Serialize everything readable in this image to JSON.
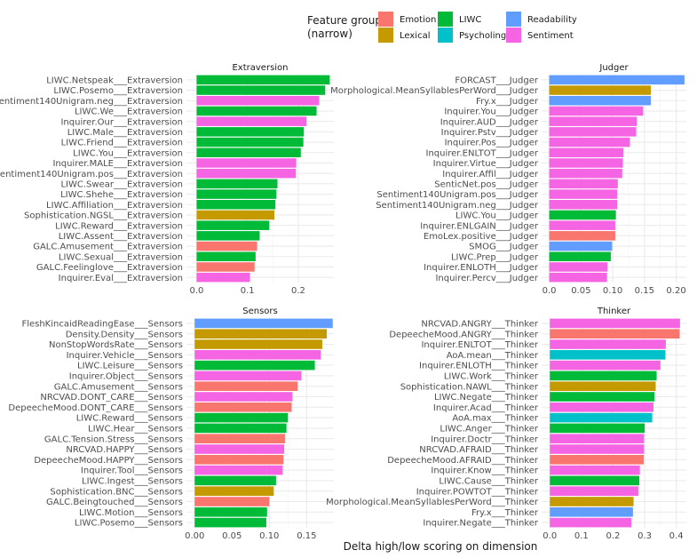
{
  "chart_data": {
    "type": "bar",
    "orientation": "horizontal",
    "xlabel": "Delta high/low scoring on dimension",
    "legend": {
      "title_line1": "Feature group",
      "title_line2": "(narrow)",
      "placement": "top",
      "entries": [
        {
          "name": "Emotion",
          "color": "#F8766D"
        },
        {
          "name": "Lexical",
          "color": "#C49A00"
        },
        {
          "name": "LIWC",
          "color": "#00BA38"
        },
        {
          "name": "Psycholing",
          "color": "#00C1C9"
        },
        {
          "name": "Readability",
          "color": "#619CFF"
        },
        {
          "name": "Sentiment",
          "color": "#F564E3"
        }
      ]
    },
    "panels": [
      {
        "title": "Extraversion",
        "xlim": [
          -0.02,
          0.27
        ],
        "ticks": [
          0.0,
          0.1,
          0.2
        ],
        "tick_labels": [
          "0.0",
          "0.1",
          "0.2"
        ],
        "bars": [
          {
            "label": "LIWC.Netspeak___Extraversion",
            "value": 0.262,
            "group": "LIWC"
          },
          {
            "label": "LIWC.Posemo___Extraversion",
            "value": 0.253,
            "group": "LIWC"
          },
          {
            "label": "Sentiment140Unigram.neg___Extraversion",
            "value": 0.241,
            "group": "Sentiment"
          },
          {
            "label": "LIWC.We___Extraversion",
            "value": 0.236,
            "group": "LIWC"
          },
          {
            "label": "Inquirer.Our___Extraversion",
            "value": 0.216,
            "group": "Sentiment"
          },
          {
            "label": "LIWC.Male___Extraversion",
            "value": 0.211,
            "group": "LIWC"
          },
          {
            "label": "LIWC.Friend___Extraversion",
            "value": 0.21,
            "group": "LIWC"
          },
          {
            "label": "LIWC.You___Extraversion",
            "value": 0.205,
            "group": "LIWC"
          },
          {
            "label": "Inquirer.MALE___Extraversion",
            "value": 0.196,
            "group": "Sentiment"
          },
          {
            "label": "Sentiment140Unigram.pos___Extraversion",
            "value": 0.195,
            "group": "Sentiment"
          },
          {
            "label": "LIWC.Swear___Extraversion",
            "value": 0.159,
            "group": "LIWC"
          },
          {
            "label": "LIWC.Shehe___Extraversion",
            "value": 0.157,
            "group": "LIWC"
          },
          {
            "label": "LIWC.Affiliation___Extraversion",
            "value": 0.155,
            "group": "LIWC"
          },
          {
            "label": "Sophistication.NGSL___Extraversion",
            "value": 0.153,
            "group": "Lexical"
          },
          {
            "label": "LIWC.Reward___Extraversion",
            "value": 0.143,
            "group": "LIWC"
          },
          {
            "label": "LIWC.Assent___Extraversion",
            "value": 0.124,
            "group": "LIWC"
          },
          {
            "label": "GALC.Amusement___Extraversion",
            "value": 0.119,
            "group": "Emotion"
          },
          {
            "label": "LIWC.Sexual___Extraversion",
            "value": 0.116,
            "group": "LIWC"
          },
          {
            "label": "GALC.Feelinglove___Extraversion",
            "value": 0.114,
            "group": "Emotion"
          },
          {
            "label": "Inquirer.Eval___Extraversion",
            "value": 0.105,
            "group": "Sentiment"
          }
        ]
      },
      {
        "title": "Judger",
        "xlim": [
          -0.012,
          0.216
        ],
        "ticks": [
          0.0,
          0.05,
          0.1,
          0.15,
          0.2
        ],
        "tick_labels": [
          "0.0",
          "0.05",
          "0.10",
          "0.15",
          "0.20"
        ],
        "bars": [
          {
            "label": "FORCAST___Judger",
            "value": 0.213,
            "group": "Readability"
          },
          {
            "label": "Morphological.MeanSyllablesPerWord___Judger",
            "value": 0.16,
            "group": "Lexical"
          },
          {
            "label": "Fry.x___Judger",
            "value": 0.16,
            "group": "Readability"
          },
          {
            "label": "Inquirer.You___Judger",
            "value": 0.148,
            "group": "Sentiment"
          },
          {
            "label": "Inquirer.AUD___Judger",
            "value": 0.138,
            "group": "Sentiment"
          },
          {
            "label": "Inquirer.Pstv___Judger",
            "value": 0.137,
            "group": "Sentiment"
          },
          {
            "label": "Inquirer.Pos___Judger",
            "value": 0.127,
            "group": "Sentiment"
          },
          {
            "label": "Inquirer.ENLTOT___Judger",
            "value": 0.117,
            "group": "Sentiment"
          },
          {
            "label": "Inquirer.Virtue___Judger",
            "value": 0.116,
            "group": "Sentiment"
          },
          {
            "label": "Inquirer.Affil___Judger",
            "value": 0.115,
            "group": "Sentiment"
          },
          {
            "label": "SenticNet.pos___Judger",
            "value": 0.108,
            "group": "Sentiment"
          },
          {
            "label": "Sentiment140Unigram.pos___Judger",
            "value": 0.107,
            "group": "Sentiment"
          },
          {
            "label": "Sentiment140Unigram.neg___Judger",
            "value": 0.107,
            "group": "Sentiment"
          },
          {
            "label": "LIWC.You___Judger",
            "value": 0.105,
            "group": "LIWC"
          },
          {
            "label": "Inquirer.ENLGAIN___Judger",
            "value": 0.104,
            "group": "Sentiment"
          },
          {
            "label": "EmoLex.positive___Judger",
            "value": 0.104,
            "group": "Emotion"
          },
          {
            "label": "SMOG___Judger",
            "value": 0.099,
            "group": "Readability"
          },
          {
            "label": "LIWC.Prep___Judger",
            "value": 0.097,
            "group": "LIWC"
          },
          {
            "label": "Inquirer.ENLOTH___Judger",
            "value": 0.092,
            "group": "Sentiment"
          },
          {
            "label": "Inquirer.Percv___Judger",
            "value": 0.091,
            "group": "Sentiment"
          }
        ]
      },
      {
        "title": "Sensors",
        "xlim": [
          -0.011,
          0.1865
        ],
        "ticks": [
          0.0,
          0.05,
          0.1,
          0.15
        ],
        "tick_labels": [
          "0.00",
          "0.05",
          "0.10",
          "0.15"
        ],
        "bars": [
          {
            "label": "FleshKincaidReadingEase___Sensors",
            "value": 0.185,
            "group": "Readability"
          },
          {
            "label": "Density.Density___Sensors",
            "value": 0.177,
            "group": "Lexical"
          },
          {
            "label": "NonStopWordsRate___Sensors",
            "value": 0.171,
            "group": "Lexical"
          },
          {
            "label": "Inquirer.Vehicle___Sensors",
            "value": 0.169,
            "group": "Sentiment"
          },
          {
            "label": "LIWC.Leisure___Sensors",
            "value": 0.161,
            "group": "LIWC"
          },
          {
            "label": "Inquirer.Object___Sensors",
            "value": 0.143,
            "group": "Sentiment"
          },
          {
            "label": "GALC.Amusement___Sensors",
            "value": 0.138,
            "group": "Emotion"
          },
          {
            "label": "NRCVAD.DONT_CARE___Sensors",
            "value": 0.131,
            "group": "Sentiment"
          },
          {
            "label": "DepeecheMood.DONT_CARE___Sensors",
            "value": 0.13,
            "group": "Emotion"
          },
          {
            "label": "LIWC.Reward___Sensors",
            "value": 0.125,
            "group": "LIWC"
          },
          {
            "label": "LIWC.Hear___Sensors",
            "value": 0.123,
            "group": "LIWC"
          },
          {
            "label": "GALC.Tension.Stress___Sensors",
            "value": 0.121,
            "group": "Emotion"
          },
          {
            "label": "NRCVAD.HAPPY___Sensors",
            "value": 0.12,
            "group": "Sentiment"
          },
          {
            "label": "DepeecheMood.HAPPY___Sensors",
            "value": 0.119,
            "group": "Emotion"
          },
          {
            "label": "Inquirer.Tool___Sensors",
            "value": 0.118,
            "group": "Sentiment"
          },
          {
            "label": "LIWC.Ingest___Sensors",
            "value": 0.109,
            "group": "LIWC"
          },
          {
            "label": "Sophistication.BNC___Sensors",
            "value": 0.106,
            "group": "Lexical"
          },
          {
            "label": "GALC.Beingtouched___Sensors",
            "value": 0.1,
            "group": "Emotion"
          },
          {
            "label": "LIWC.Motion___Sensors",
            "value": 0.097,
            "group": "LIWC"
          },
          {
            "label": "LIWC.Posemo___Sensors",
            "value": 0.096,
            "group": "LIWC"
          }
        ]
      },
      {
        "title": "Thinker",
        "xlim": [
          -0.026,
          0.432
        ],
        "ticks": [
          0.0,
          0.1,
          0.2,
          0.3,
          0.4
        ],
        "tick_labels": [
          "0.0",
          "0.1",
          "0.2",
          "0.3",
          "0.4"
        ],
        "bars": [
          {
            "label": "NRCVAD.ANGRY___Thinker",
            "value": 0.412,
            "group": "Sentiment"
          },
          {
            "label": "DepeecheMood.ANGRY___Thinker",
            "value": 0.411,
            "group": "Emotion"
          },
          {
            "label": "Inquirer.ENLTOT___Thinker",
            "value": 0.367,
            "group": "Sentiment"
          },
          {
            "label": "AoA.mean___Thinker",
            "value": 0.366,
            "group": "Psycholing"
          },
          {
            "label": "Inquirer.ENLOTH___Thinker",
            "value": 0.35,
            "group": "Sentiment"
          },
          {
            "label": "LIWC.Work___Thinker",
            "value": 0.338,
            "group": "LIWC"
          },
          {
            "label": "Sophistication.NAWL___Thinker",
            "value": 0.335,
            "group": "Lexical"
          },
          {
            "label": "LIWC.Negate___Thinker",
            "value": 0.331,
            "group": "LIWC"
          },
          {
            "label": "Inquirer.Acad___Thinker",
            "value": 0.328,
            "group": "Sentiment"
          },
          {
            "label": "AoA.max___Thinker",
            "value": 0.324,
            "group": "Psycholing"
          },
          {
            "label": "LIWC.Anger___Thinker",
            "value": 0.3,
            "group": "LIWC"
          },
          {
            "label": "Inquirer.Doctr___Thinker",
            "value": 0.298,
            "group": "Sentiment"
          },
          {
            "label": "NRCVAD.AFRAID___Thinker",
            "value": 0.298,
            "group": "Sentiment"
          },
          {
            "label": "DepeecheMood.AFRAID___Thinker",
            "value": 0.297,
            "group": "Emotion"
          },
          {
            "label": "Inquirer.Know___Thinker",
            "value": 0.285,
            "group": "Sentiment"
          },
          {
            "label": "LIWC.Cause___Thinker",
            "value": 0.283,
            "group": "LIWC"
          },
          {
            "label": "Inquirer.POWTOT___Thinker",
            "value": 0.28,
            "group": "Sentiment"
          },
          {
            "label": "Morphological.MeanSyllablesPerWord___Thinker",
            "value": 0.265,
            "group": "Lexical"
          },
          {
            "label": "Fry.x___Thinker",
            "value": 0.263,
            "group": "Readability"
          },
          {
            "label": "Inquirer.Negate___Thinker",
            "value": 0.258,
            "group": "Sentiment"
          }
        ]
      }
    ]
  }
}
